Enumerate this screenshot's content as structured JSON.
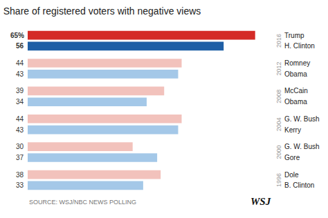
{
  "chart_data": {
    "type": "bar",
    "orientation": "horizontal",
    "title": "Share of registered voters with negative views",
    "categories": [
      "Trump",
      "H. Clinton",
      "Romney",
      "Obama",
      "McCain",
      "Obama",
      "G. W. Bush",
      "Kerry",
      "G. W. Bush",
      "Gore",
      "Dole",
      "B. Clinton"
    ],
    "values": [
      65,
      56,
      44,
      43,
      39,
      34,
      44,
      43,
      30,
      37,
      38,
      33
    ],
    "value_labels": [
      "65%",
      "56",
      "44",
      "43",
      "39",
      "34",
      "44",
      "43",
      "30",
      "37",
      "38",
      "33"
    ],
    "data_labels": true,
    "years": [
      "2016",
      "2016",
      "2012",
      "2012",
      "2008",
      "2008",
      "2004",
      "2004",
      "2000",
      "2000",
      "1996",
      "1996"
    ],
    "colors": [
      "#d42b27",
      "#1f5fa6",
      "#f2c2bc",
      "#a4c8e8",
      "#f2c2bc",
      "#a4c8e8",
      "#f2c2bc",
      "#a4c8e8",
      "#f2c2bc",
      "#a4c8e8",
      "#f2c2bc",
      "#a4c8e8"
    ],
    "xlim": [
      0,
      70
    ],
    "grid": false,
    "tick_labels": "y",
    "annotations": [
      "SOURCE: WSJ/NBC NEWS POLLING",
      "WSJ"
    ]
  }
}
